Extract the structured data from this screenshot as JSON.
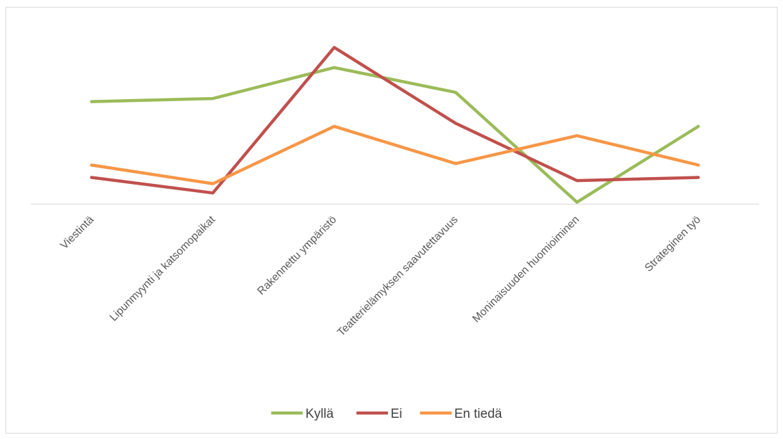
{
  "chart_data": {
    "type": "line",
    "categories": [
      "Viestintä",
      "Lipunmyynti ja katsomopaikat",
      "Rakennettu ympäristö",
      "Teatterielämyksen saavutettavuus",
      "Moninaisuuden huomioiminen",
      "Strateginen työ"
    ],
    "series": [
      {
        "name": "Kyllä",
        "color": "#9bbb59",
        "values": [
          33,
          34,
          44,
          36,
          0.5,
          25
        ]
      },
      {
        "name": "Ei",
        "color": "#c0504d",
        "values": [
          8.5,
          3.5,
          50.5,
          26,
          7.5,
          8.5
        ]
      },
      {
        "name": "En tiedä",
        "color": "#f79646",
        "values": [
          12.5,
          6.5,
          25,
          13,
          22,
          12.5
        ]
      }
    ],
    "ylim": [
      0,
      57
    ],
    "grid": false,
    "y_axis_visible": false,
    "legend_position": "bottom"
  }
}
